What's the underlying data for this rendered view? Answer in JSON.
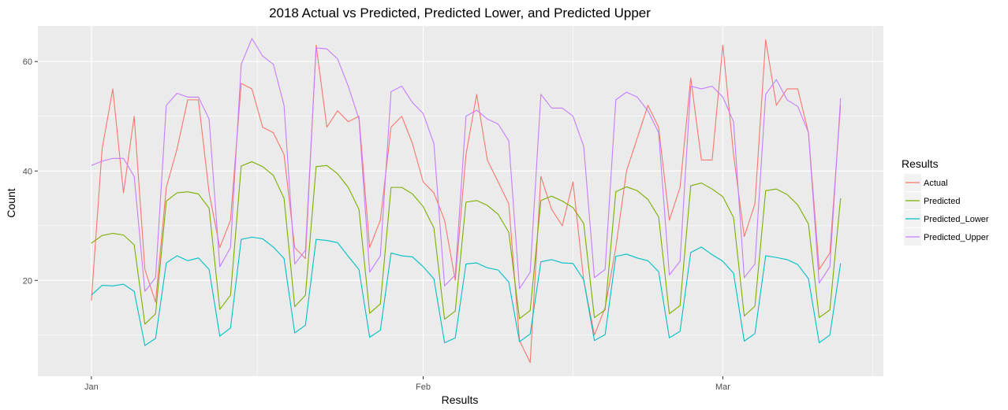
{
  "chart_data": {
    "type": "line",
    "title": "2018 Actual vs Predicted, Predicted Lower, and Predicted Upper",
    "xlabel": "Results",
    "ylabel": "Count",
    "x_start": "2018-01-01",
    "x_ticks": [
      {
        "label": "Jan",
        "date": "2018-01-01"
      },
      {
        "label": "Feb",
        "date": "2018-02-01"
      },
      {
        "label": "Mar",
        "date": "2018-03-01"
      }
    ],
    "x_range": [
      "2017-12-27",
      "2018-03-16"
    ],
    "y_ticks": [
      20,
      40,
      60
    ],
    "ylim": [
      2.5,
      66.5
    ],
    "grid": true,
    "legend": {
      "title": "Results",
      "position": "right"
    },
    "series": [
      {
        "name": "Actual",
        "color": "#F8766D",
        "values": [
          16.3,
          44,
          55,
          36,
          50,
          22,
          16,
          37,
          44,
          53,
          53,
          36,
          26,
          31,
          56,
          55,
          48,
          47,
          43,
          26,
          24,
          63,
          48,
          51,
          49,
          50,
          26,
          31,
          48,
          50,
          45,
          38,
          36,
          31,
          20,
          43,
          54,
          42,
          38,
          34,
          9,
          5,
          39,
          33,
          30,
          38,
          20,
          10,
          15,
          26,
          40,
          46,
          52,
          48,
          31,
          37,
          57,
          42,
          42,
          63,
          43,
          28,
          34,
          64,
          52,
          55,
          55,
          47,
          22,
          25,
          52
        ]
      },
      {
        "name": "Predicted",
        "color": "#7CAE00",
        "values": [
          26.8,
          28.2,
          28.6,
          28.3,
          26.5,
          12,
          13.9,
          34.5,
          36,
          36.2,
          35.8,
          33.2,
          14.7,
          17.3,
          40.9,
          41.7,
          40.8,
          39.2,
          35,
          15.2,
          17.3,
          40.8,
          41,
          39.5,
          37,
          33,
          14,
          15.7,
          37,
          37,
          35.8,
          33.5,
          29.6,
          12.9,
          14.4,
          34.3,
          34.6,
          33.7,
          32.1,
          28.8,
          13,
          14.5,
          34.6,
          35.4,
          34.5,
          33.3,
          30.4,
          13.2,
          14.6,
          36.2,
          37.1,
          36.4,
          34.8,
          31.6,
          13.9,
          15.4,
          37.3,
          37.8,
          36.7,
          35.3,
          31.5,
          13.5,
          15.3,
          36.4,
          36.7,
          35.7,
          33.8,
          30.3,
          13.2,
          14.6,
          35
        ]
      },
      {
        "name": "Predicted_Lower",
        "color": "#00BFC4",
        "values": [
          17.3,
          19.1,
          19,
          19.3,
          18,
          8.1,
          9.4,
          23.2,
          24.5,
          23.6,
          24.1,
          22,
          9.8,
          11.3,
          27.5,
          27.9,
          27.6,
          26.1,
          24,
          10.4,
          11.8,
          27.5,
          27.3,
          26.9,
          24.4,
          22,
          9.6,
          10.9,
          25,
          24.5,
          24.3,
          22.5,
          20.3,
          8.6,
          9.5,
          23,
          23.2,
          22.3,
          21.9,
          19.7,
          8.8,
          10.2,
          23.4,
          23.8,
          23.2,
          23.1,
          20.1,
          9,
          10.1,
          24.4,
          24.8,
          24.1,
          23.6,
          21.6,
          9.5,
          10.7,
          25.1,
          26.1,
          24.7,
          23.5,
          21.3,
          8.9,
          10.3,
          24.5,
          24.2,
          23.8,
          22.9,
          20.3,
          8.6,
          10,
          23.1
        ]
      },
      {
        "name": "Predicted_Upper",
        "color": "#C77CFF",
        "values": [
          41,
          41.8,
          42.3,
          42.3,
          39,
          18,
          20.5,
          52,
          54.2,
          53.5,
          53.5,
          49.5,
          22.5,
          26,
          59.5,
          64.2,
          61,
          59.5,
          52,
          23,
          25.5,
          62.5,
          62.3,
          60.5,
          55.5,
          49.5,
          21.5,
          24.5,
          54.5,
          55.5,
          52.5,
          50.5,
          45,
          19,
          21,
          50,
          51.1,
          49.5,
          48.6,
          45.5,
          18.5,
          21.5,
          54,
          51.5,
          51.5,
          50,
          44.5,
          20.5,
          22,
          53,
          54.4,
          53.5,
          51,
          47,
          21,
          23.5,
          55.5,
          55,
          55.5,
          53.5,
          49,
          20.5,
          23,
          54,
          56.7,
          53,
          51.8,
          47,
          19.5,
          22.5,
          53.3
        ]
      }
    ]
  }
}
